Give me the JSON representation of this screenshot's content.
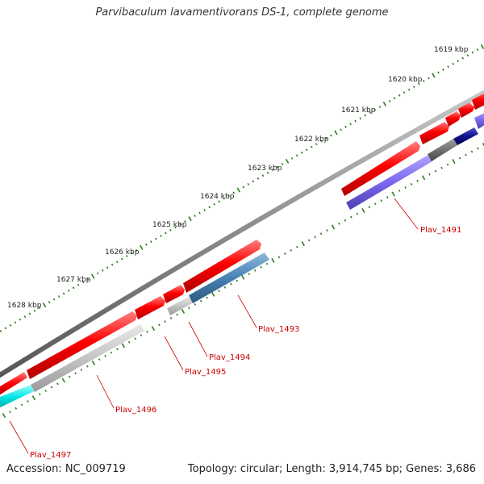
{
  "title": "Parvibaculum lavamentivorans DS-1, complete genome",
  "accession": "Accession: NC_009719",
  "summary": "Topology: circular; Length: 3,914,745 bp; Genes: 3,686",
  "colors": {
    "backbone": "#8a8a8a",
    "forward_cds": "#ff0000",
    "reverse_cds": "#bdbdbd",
    "tick": "#2e7d1e",
    "label": "#cc0000"
  },
  "ruler": {
    "unit": "kbp",
    "labels": [
      "1619 kbp",
      "1620 kbp",
      "1621 kbp",
      "1622 kbp",
      "1623 kbp",
      "1624 kbp",
      "1625 kbp",
      "1626 kbp",
      "1627 kbp",
      "1628 kbp"
    ]
  },
  "genes": [
    {
      "name": "Plav_1491",
      "strand": "reverse",
      "color": "#7b68ee"
    },
    {
      "name": "Plav_1493",
      "strand": "reverse",
      "color": "#4682b4"
    },
    {
      "name": "Plav_1494",
      "strand": "reverse",
      "color": "#bdbdbd"
    },
    {
      "name": "Plav_1495",
      "strand": "forward",
      "color": "#ff0000"
    },
    {
      "name": "Plav_1496",
      "strand": "reverse",
      "color": "#bdbdbd"
    },
    {
      "name": "Plav_1497",
      "strand": "reverse",
      "color": "#00e5e5"
    }
  ]
}
